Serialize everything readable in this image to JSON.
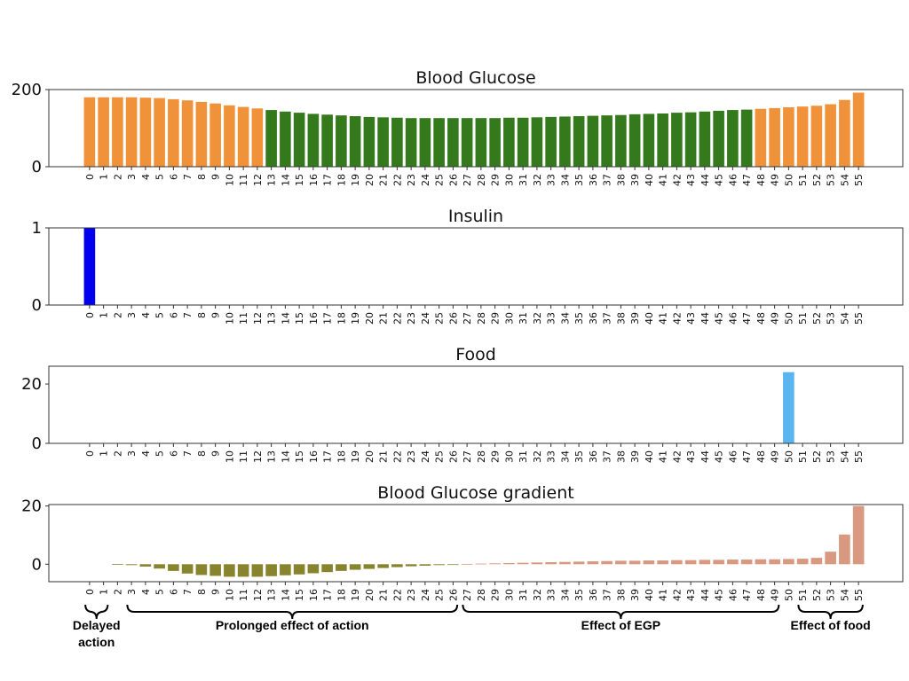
{
  "chart_data": [
    {
      "type": "bar",
      "title": "Blood Glucose",
      "ylim": [
        0,
        200
      ],
      "yticks": [
        0,
        200
      ],
      "categories": [
        "0",
        "1",
        "2",
        "3",
        "4",
        "5",
        "6",
        "7",
        "8",
        "9",
        "10",
        "11",
        "12",
        "13",
        "14",
        "15",
        "16",
        "17",
        "18",
        "19",
        "20",
        "21",
        "22",
        "23",
        "24",
        "25",
        "26",
        "27",
        "28",
        "29",
        "30",
        "31",
        "32",
        "33",
        "34",
        "35",
        "36",
        "37",
        "38",
        "39",
        "40",
        "41",
        "42",
        "43",
        "44",
        "45",
        "46",
        "47",
        "48",
        "49",
        "50",
        "51",
        "52",
        "53",
        "54",
        "55"
      ],
      "values": [
        180,
        180,
        180,
        180,
        179,
        178,
        175,
        172,
        168,
        164,
        159,
        155,
        151,
        147,
        143,
        140,
        137,
        135,
        133,
        131,
        129,
        128,
        127,
        126,
        126,
        126,
        126,
        126,
        126,
        126,
        127,
        127,
        128,
        129,
        130,
        131,
        132,
        133,
        134,
        136,
        137,
        138,
        140,
        141,
        143,
        145,
        147,
        148,
        150,
        152,
        154,
        156,
        158,
        162,
        173,
        192
      ],
      "colors": [
        "#f0923a",
        "#f0923a",
        "#f0923a",
        "#f0923a",
        "#f0923a",
        "#f0923a",
        "#f0923a",
        "#f0923a",
        "#f0923a",
        "#f0923a",
        "#f0923a",
        "#f0923a",
        "#f0923a",
        "#347a1c",
        "#347a1c",
        "#347a1c",
        "#347a1c",
        "#347a1c",
        "#347a1c",
        "#347a1c",
        "#347a1c",
        "#347a1c",
        "#347a1c",
        "#347a1c",
        "#347a1c",
        "#347a1c",
        "#347a1c",
        "#347a1c",
        "#347a1c",
        "#347a1c",
        "#347a1c",
        "#347a1c",
        "#347a1c",
        "#347a1c",
        "#347a1c",
        "#347a1c",
        "#347a1c",
        "#347a1c",
        "#347a1c",
        "#347a1c",
        "#347a1c",
        "#347a1c",
        "#347a1c",
        "#347a1c",
        "#347a1c",
        "#347a1c",
        "#347a1c",
        "#347a1c",
        "#f0923a",
        "#f0923a",
        "#f0923a",
        "#f0923a",
        "#f0923a",
        "#f0923a",
        "#f0923a",
        "#f0923a"
      ]
    },
    {
      "type": "bar",
      "title": "Insulin",
      "ylim": [
        0,
        1
      ],
      "yticks": [
        0,
        1
      ],
      "categories": [
        "0",
        "1",
        "2",
        "3",
        "4",
        "5",
        "6",
        "7",
        "8",
        "9",
        "10",
        "11",
        "12",
        "13",
        "14",
        "15",
        "16",
        "17",
        "18",
        "19",
        "20",
        "21",
        "22",
        "23",
        "24",
        "25",
        "26",
        "27",
        "28",
        "29",
        "30",
        "31",
        "32",
        "33",
        "34",
        "35",
        "36",
        "37",
        "38",
        "39",
        "40",
        "41",
        "42",
        "43",
        "44",
        "45",
        "46",
        "47",
        "48",
        "49",
        "50",
        "51",
        "52",
        "53",
        "54",
        "55"
      ],
      "values": [
        1,
        0,
        0,
        0,
        0,
        0,
        0,
        0,
        0,
        0,
        0,
        0,
        0,
        0,
        0,
        0,
        0,
        0,
        0,
        0,
        0,
        0,
        0,
        0,
        0,
        0,
        0,
        0,
        0,
        0,
        0,
        0,
        0,
        0,
        0,
        0,
        0,
        0,
        0,
        0,
        0,
        0,
        0,
        0,
        0,
        0,
        0,
        0,
        0,
        0,
        0,
        0,
        0,
        0,
        0,
        0
      ],
      "color": "#0000ee"
    },
    {
      "type": "bar",
      "title": "Food",
      "ylim": [
        0,
        26
      ],
      "yticks": [
        0,
        20
      ],
      "categories": [
        "0",
        "1",
        "2",
        "3",
        "4",
        "5",
        "6",
        "7",
        "8",
        "9",
        "10",
        "11",
        "12",
        "13",
        "14",
        "15",
        "16",
        "17",
        "18",
        "19",
        "20",
        "21",
        "22",
        "23",
        "24",
        "25",
        "26",
        "27",
        "28",
        "29",
        "30",
        "31",
        "32",
        "33",
        "34",
        "35",
        "36",
        "37",
        "38",
        "39",
        "40",
        "41",
        "42",
        "43",
        "44",
        "45",
        "46",
        "47",
        "48",
        "49",
        "50",
        "51",
        "52",
        "53",
        "54",
        "55"
      ],
      "values": [
        0,
        0,
        0,
        0,
        0,
        0,
        0,
        0,
        0,
        0,
        0,
        0,
        0,
        0,
        0,
        0,
        0,
        0,
        0,
        0,
        0,
        0,
        0,
        0,
        0,
        0,
        0,
        0,
        0,
        0,
        0,
        0,
        0,
        0,
        0,
        0,
        0,
        0,
        0,
        0,
        0,
        0,
        0,
        0,
        0,
        0,
        0,
        0,
        0,
        0,
        24,
        0,
        0,
        0,
        0,
        0
      ],
      "color": "#5ab4ef"
    },
    {
      "type": "bar",
      "title": "Blood Glucose gradient",
      "ylim": [
        -6,
        20.5
      ],
      "yticks": [
        0,
        20
      ],
      "categories": [
        "0",
        "1",
        "2",
        "3",
        "4",
        "5",
        "6",
        "7",
        "8",
        "9",
        "10",
        "11",
        "12",
        "13",
        "14",
        "15",
        "16",
        "17",
        "18",
        "19",
        "20",
        "21",
        "22",
        "23",
        "24",
        "25",
        "26",
        "27",
        "28",
        "29",
        "30",
        "31",
        "32",
        "33",
        "34",
        "35",
        "36",
        "37",
        "38",
        "39",
        "40",
        "41",
        "42",
        "43",
        "44",
        "45",
        "46",
        "47",
        "48",
        "49",
        "50",
        "51",
        "52",
        "53",
        "54",
        "55"
      ],
      "values": [
        0,
        0,
        0.1,
        -0.3,
        -0.8,
        -1.5,
        -2.3,
        -3.2,
        -3.7,
        -4,
        -4.3,
        -4.3,
        -4.3,
        -4.1,
        -3.8,
        -3.5,
        -3.1,
        -2.7,
        -2.3,
        -1.9,
        -1.6,
        -1.3,
        -1,
        -0.7,
        -0.5,
        -0.3,
        -0.1,
        0.1,
        0.2,
        0.3,
        0.4,
        0.5,
        0.6,
        0.7,
        0.8,
        0.9,
        1,
        1.1,
        1.2,
        1.2,
        1.3,
        1.3,
        1.4,
        1.4,
        1.5,
        1.5,
        1.6,
        1.6,
        1.7,
        1.7,
        1.8,
        1.9,
        2.2,
        4.3,
        10.2,
        20
      ],
      "colors": [
        "#87842d",
        "#87842d",
        "#87842d",
        "#87842d",
        "#87842d",
        "#87842d",
        "#87842d",
        "#87842d",
        "#87842d",
        "#87842d",
        "#87842d",
        "#87842d",
        "#87842d",
        "#87842d",
        "#87842d",
        "#87842d",
        "#87842d",
        "#87842d",
        "#87842d",
        "#87842d",
        "#87842d",
        "#87842d",
        "#87842d",
        "#87842d",
        "#87842d",
        "#87842d",
        "#87842d",
        "#d99980",
        "#d99980",
        "#d99980",
        "#d99980",
        "#d99980",
        "#d99980",
        "#d99980",
        "#d99980",
        "#d99980",
        "#d99980",
        "#d99980",
        "#d99980",
        "#d99980",
        "#d99980",
        "#d99980",
        "#d99980",
        "#d99980",
        "#d99980",
        "#d99980",
        "#d99980",
        "#d99980",
        "#d99980",
        "#d99980",
        "#d99980",
        "#d99980",
        "#d99980",
        "#d99980",
        "#d99980",
        "#d99980"
      ]
    }
  ],
  "annotations": [
    {
      "lines": [
        "Delayed",
        "action"
      ],
      "from": 0,
      "to": 1
    },
    {
      "lines": [
        "Prolonged effect of action"
      ],
      "from": 3,
      "to": 26
    },
    {
      "lines": [
        "Effect of EGP"
      ],
      "from": 27,
      "to": 49
    },
    {
      "lines": [
        "Effect of food"
      ],
      "from": 51,
      "to": 55
    }
  ]
}
